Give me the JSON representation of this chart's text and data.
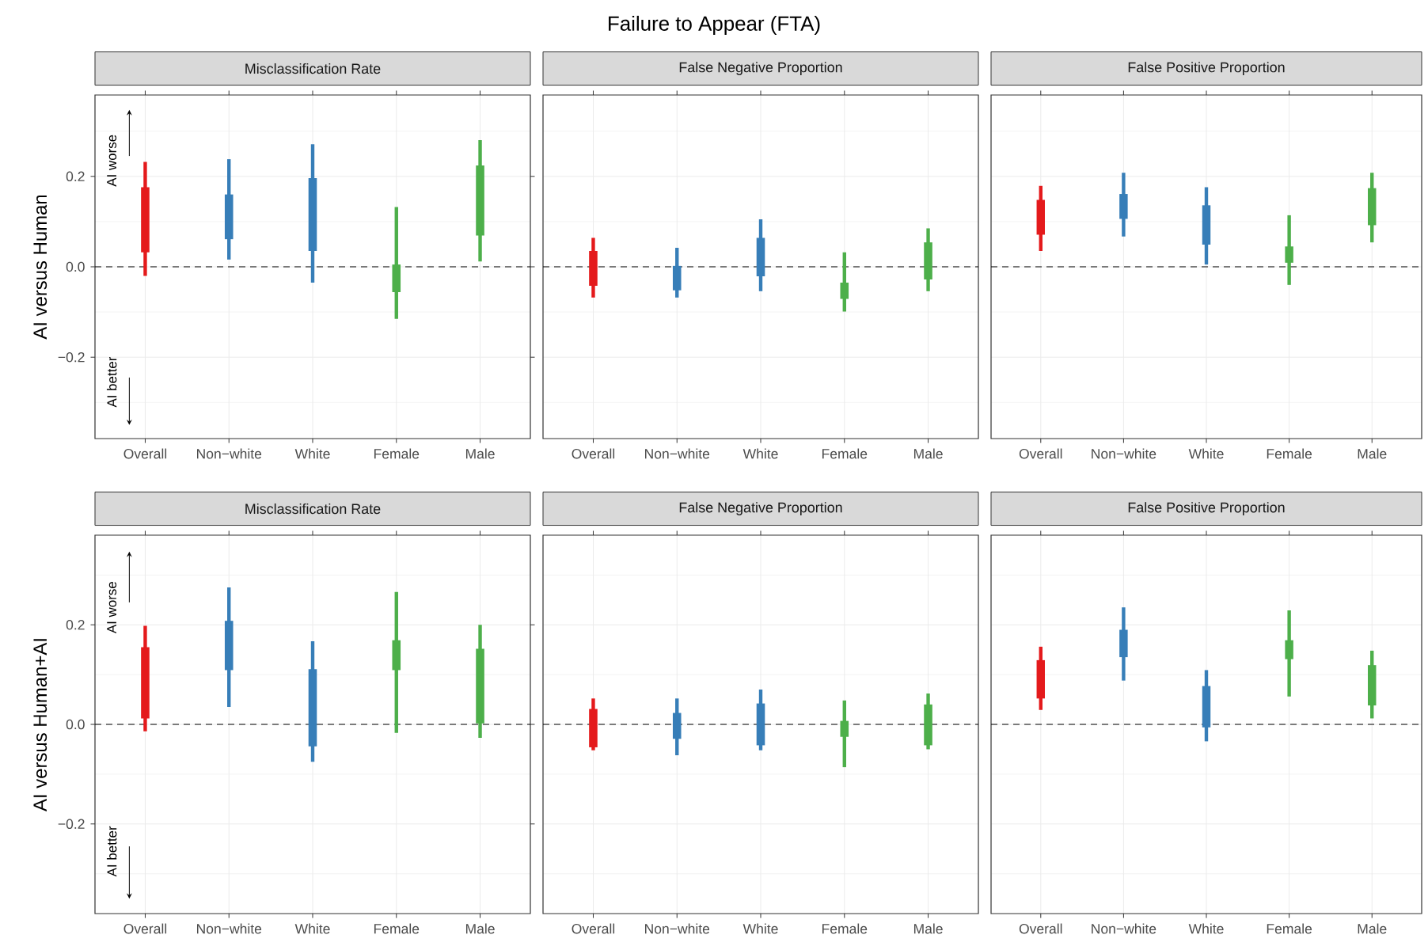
{
  "chart_data": [
    {
      "type": "bar",
      "title": "Misclassification Rate",
      "ylabel": "AI versus Human",
      "categories": [
        "Overall",
        "Non−white",
        "White",
        "Female",
        "Male"
      ],
      "base": [
        0.032,
        0.061,
        0.035,
        -0.056,
        0.069
      ],
      "values": [
        0.144,
        0.099,
        0.161,
        0.061,
        0.155
      ],
      "errors": [
        [
          -0.02,
          0.232
        ],
        [
          0.016,
          0.238
        ],
        [
          -0.035,
          0.271
        ],
        [
          -0.115,
          0.132
        ],
        [
          0.012,
          0.28
        ]
      ],
      "colors": [
        "#e41a1c",
        "#377eb8",
        "#377eb8",
        "#4daf4a",
        "#4daf4a"
      ],
      "ylim": [
        -0.38,
        0.38
      ],
      "yticks": [
        {
          "value": -0.3,
          "label": null
        },
        {
          "value": -0.2,
          "label": "−0.2"
        },
        {
          "value": -0.1,
          "label": null
        },
        {
          "value": 0,
          "label": "0.0"
        },
        {
          "value": 0.1,
          "label": null
        },
        {
          "value": 0.2,
          "label": "0.2"
        },
        {
          "value": 0.3,
          "label": null
        }
      ],
      "grid": true,
      "ref_lines": [
        {
          "axis": "y",
          "value": 0,
          "color": "#000000",
          "line_style": "dashed"
        }
      ],
      "annotations": [
        "Failure to Appear (FTA)",
        "AI worse",
        "AI better"
      ]
    },
    {
      "type": "bar",
      "title": "False Negative Proportion",
      "categories": [
        "Overall",
        "Non−white",
        "White",
        "Female",
        "Male"
      ],
      "base": [
        -0.042,
        -0.052,
        -0.021,
        -0.071,
        -0.028
      ],
      "values": [
        0.077,
        0.054,
        0.085,
        0.036,
        0.082
      ],
      "errors": [
        [
          -0.068,
          0.064
        ],
        [
          -0.068,
          0.042
        ],
        [
          -0.054,
          0.105
        ],
        [
          -0.099,
          0.032
        ],
        [
          -0.054,
          0.085
        ]
      ],
      "colors": [
        "#e41a1c",
        "#377eb8",
        "#377eb8",
        "#4daf4a",
        "#4daf4a"
      ],
      "ylim": [
        -0.38,
        0.38
      ],
      "yticks": [
        {
          "value": -0.3,
          "label": null
        },
        -0.2,
        {
          "value": -0.1,
          "label": null
        },
        0,
        {
          "value": 0.1,
          "label": null
        },
        0.2,
        {
          "value": 0.3,
          "label": null
        }
      ],
      "tick_labels": "x",
      "grid": true,
      "ref_lines": [
        {
          "axis": "y",
          "value": 0,
          "color": "#000000",
          "line_style": "dashed"
        }
      ]
    },
    {
      "type": "bar",
      "title": "False Positive Proportion",
      "categories": [
        "Overall",
        "Non−white",
        "White",
        "Female",
        "Male"
      ],
      "base": [
        0.071,
        0.106,
        0.049,
        0.009,
        0.092
      ],
      "values": [
        0.077,
        0.055,
        0.087,
        0.036,
        0.082
      ],
      "errors": [
        [
          0.035,
          0.179
        ],
        [
          0.067,
          0.208
        ],
        [
          0.005,
          0.176
        ],
        [
          -0.04,
          0.114
        ],
        [
          0.054,
          0.208
        ]
      ],
      "colors": [
        "#e41a1c",
        "#377eb8",
        "#377eb8",
        "#4daf4a",
        "#4daf4a"
      ],
      "ylim": [
        -0.38,
        0.38
      ],
      "yticks": [
        {
          "value": -0.3,
          "label": null
        },
        -0.2,
        {
          "value": -0.1,
          "label": null
        },
        0,
        {
          "value": 0.1,
          "label": null
        },
        0.2,
        {
          "value": 0.3,
          "label": null
        }
      ],
      "tick_labels": "x",
      "grid": true,
      "ref_lines": [
        {
          "axis": "y",
          "value": 0,
          "color": "#000000",
          "line_style": "dashed"
        }
      ]
    },
    {
      "type": "bar",
      "title": "Misclassification Rate",
      "ylabel": "AI versus Human+AI",
      "categories": [
        "Overall",
        "Non−white",
        "White",
        "Female",
        "Male"
      ],
      "base": [
        0.012,
        0.109,
        -0.044,
        0.109,
        0.002
      ],
      "values": [
        0.143,
        0.099,
        0.155,
        0.06,
        0.15
      ],
      "errors": [
        [
          -0.014,
          0.198
        ],
        [
          0.035,
          0.275
        ],
        [
          -0.075,
          0.167
        ],
        [
          -0.017,
          0.266
        ],
        [
          -0.027,
          0.2
        ]
      ],
      "colors": [
        "#e41a1c",
        "#377eb8",
        "#377eb8",
        "#4daf4a",
        "#4daf4a"
      ],
      "ylim": [
        -0.38,
        0.38
      ],
      "yticks": [
        {
          "value": -0.3,
          "label": null
        },
        {
          "value": -0.2,
          "label": "−0.2"
        },
        {
          "value": -0.1,
          "label": null
        },
        {
          "value": 0,
          "label": "0.0"
        },
        {
          "value": 0.1,
          "label": null
        },
        {
          "value": 0.2,
          "label": "0.2"
        },
        {
          "value": 0.3,
          "label": null
        }
      ],
      "grid": true,
      "ref_lines": [
        {
          "axis": "y",
          "value": 0,
          "color": "#000000",
          "line_style": "dashed"
        }
      ],
      "annotations": [
        "AI worse",
        "AI better"
      ]
    },
    {
      "type": "bar",
      "title": "False Negative Proportion",
      "categories": [
        "Overall",
        "Non−white",
        "White",
        "Female",
        "Male"
      ],
      "base": [
        -0.046,
        -0.029,
        -0.042,
        -0.025,
        -0.042
      ],
      "values": [
        0.077,
        0.052,
        0.084,
        0.032,
        0.082
      ],
      "errors": [
        [
          -0.052,
          0.052
        ],
        [
          -0.062,
          0.052
        ],
        [
          -0.052,
          0.07
        ],
        [
          -0.086,
          0.048
        ],
        [
          -0.05,
          0.062
        ]
      ],
      "colors": [
        "#e41a1c",
        "#377eb8",
        "#377eb8",
        "#4daf4a",
        "#4daf4a"
      ],
      "ylim": [
        -0.38,
        0.38
      ],
      "yticks": [
        {
          "value": -0.3,
          "label": null
        },
        -0.2,
        {
          "value": -0.1,
          "label": null
        },
        0,
        {
          "value": 0.1,
          "label": null
        },
        0.2,
        {
          "value": 0.3,
          "label": null
        }
      ],
      "tick_labels": "x",
      "grid": true,
      "ref_lines": [
        {
          "axis": "y",
          "value": 0,
          "color": "#000000",
          "line_style": "dashed"
        }
      ]
    },
    {
      "type": "bar",
      "title": "False Positive Proportion",
      "categories": [
        "Overall",
        "Non−white",
        "White",
        "Female",
        "Male"
      ],
      "base": [
        0.052,
        0.135,
        -0.006,
        0.131,
        0.038
      ],
      "values": [
        0.077,
        0.055,
        0.083,
        0.038,
        0.081
      ],
      "errors": [
        [
          0.029,
          0.156
        ],
        [
          0.088,
          0.235
        ],
        [
          -0.034,
          0.109
        ],
        [
          0.056,
          0.229
        ],
        [
          0.012,
          0.148
        ]
      ],
      "colors": [
        "#e41a1c",
        "#377eb8",
        "#377eb8",
        "#4daf4a",
        "#4daf4a"
      ],
      "ylim": [
        -0.38,
        0.38
      ],
      "yticks": [
        {
          "value": -0.3,
          "label": null
        },
        -0.2,
        {
          "value": -0.1,
          "label": null
        },
        0,
        {
          "value": 0.1,
          "label": null
        },
        0.2,
        {
          "value": 0.3,
          "label": null
        }
      ],
      "tick_labels": "x",
      "grid": true,
      "ref_lines": [
        {
          "axis": "y",
          "value": 0,
          "color": "#000000",
          "line_style": "dashed"
        }
      ]
    }
  ]
}
